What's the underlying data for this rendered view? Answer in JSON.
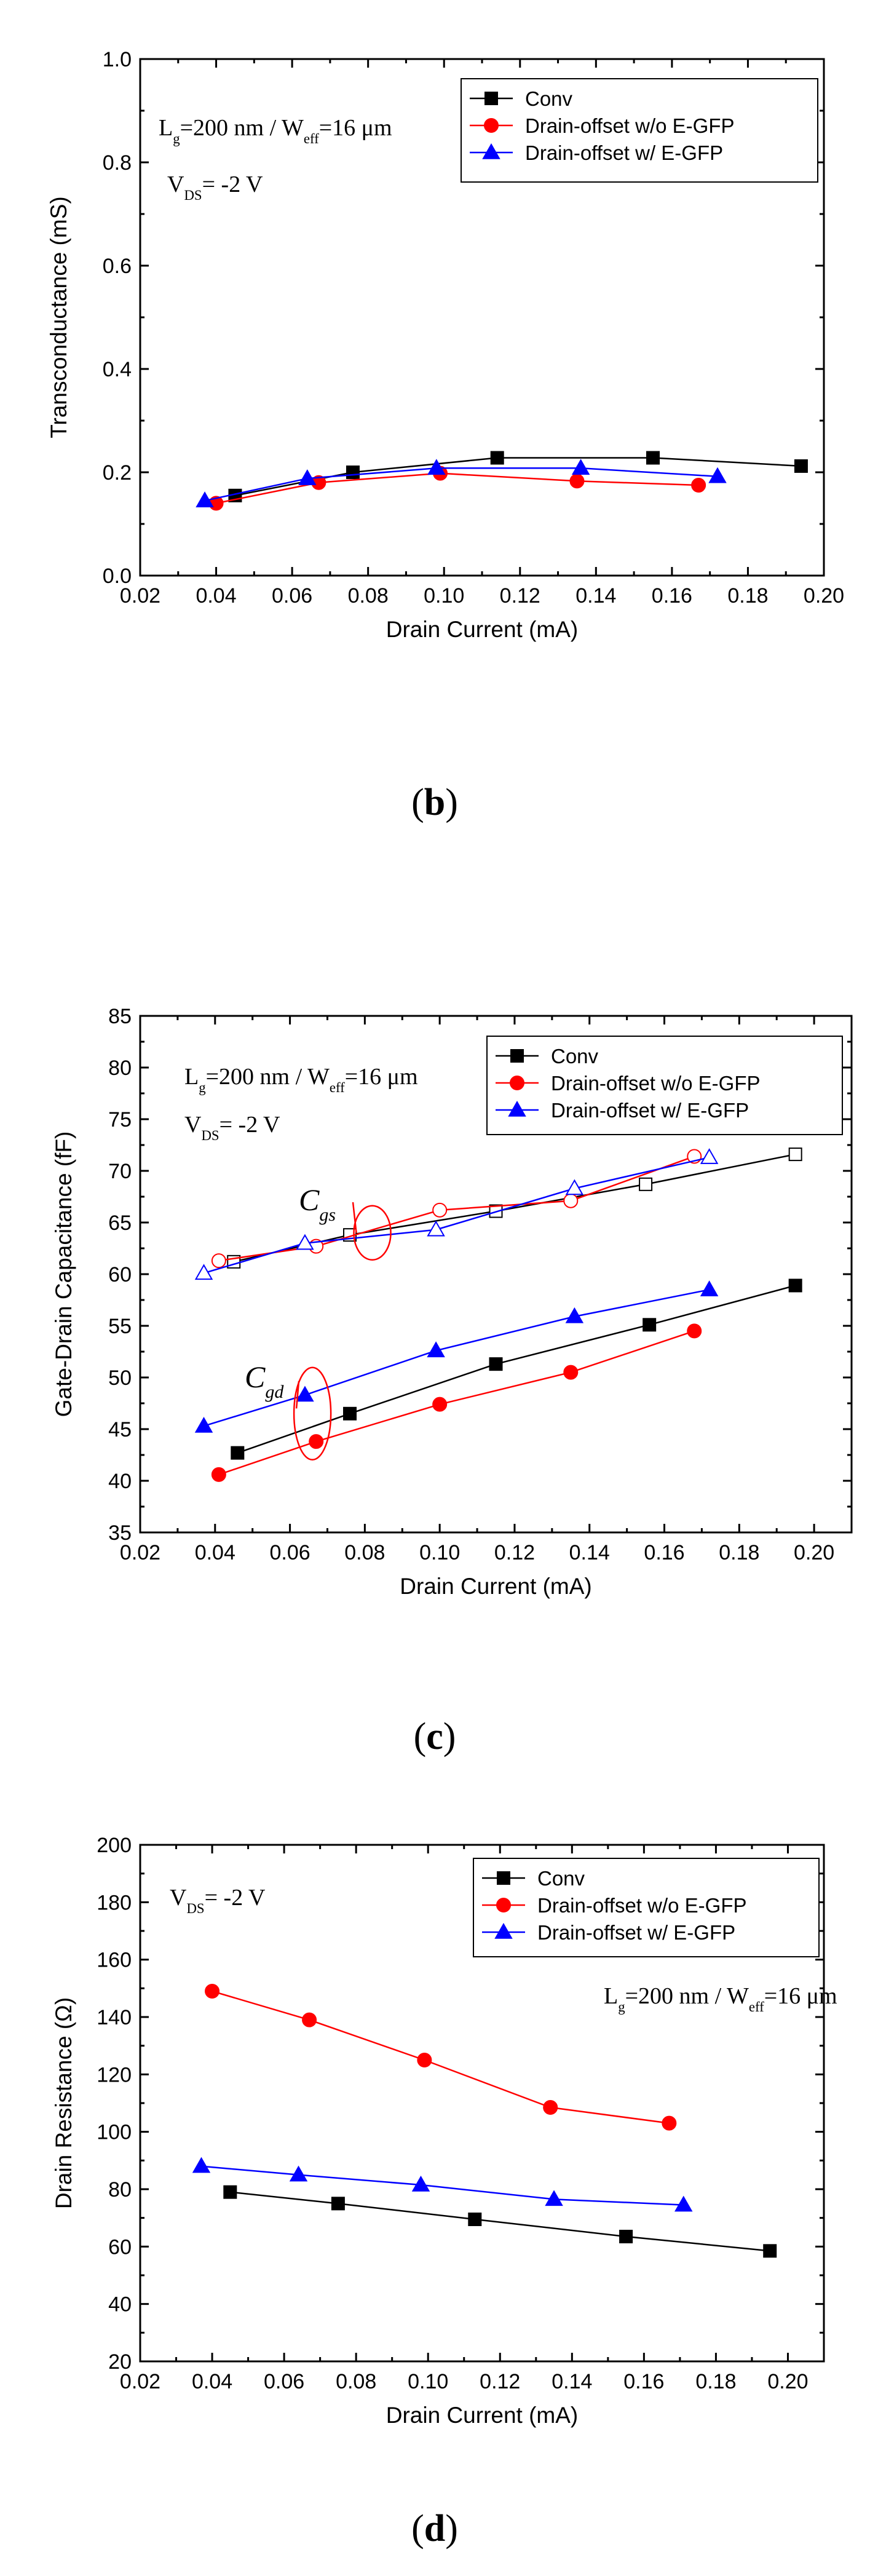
{
  "panels": [
    {
      "label": "b"
    },
    {
      "label": "c"
    },
    {
      "label": "d"
    }
  ],
  "series_colors": {
    "Conv": "#000000",
    "Drain-offset w/o E-GFP": "#ff0000",
    "Drain-offset w/ E-GFP": "#0000ff"
  },
  "chart_data": [
    {
      "type": "line",
      "panel": "b",
      "xlabel": "Drain Current (mA)",
      "ylabel": "Transconductance (mS)",
      "xlim": [
        0.02,
        0.2
      ],
      "ylim": [
        0.0,
        1.0
      ],
      "xticks": [
        "0.02",
        "0.04",
        "0.06",
        "0.08",
        "0.10",
        "0.12",
        "0.14",
        "0.16",
        "0.18",
        "0.20"
      ],
      "yticks": [
        "0.0",
        "0.2",
        "0.4",
        "0.6",
        "0.8",
        "1.0"
      ],
      "legend_position": "top-right",
      "annotations": {
        "lg": "L",
        "lg_sub": "g",
        "lg_rest": "=200 nm / W",
        "weff_sub": "eff",
        "weff_rest": "=16 μm",
        "vds": "V",
        "vds_sub": "DS",
        "vds_rest": "= -2 V"
      },
      "series": [
        {
          "name": "Conv",
          "marker": "square",
          "x": [
            0.045,
            0.076,
            0.114,
            0.155,
            0.194
          ],
          "y": [
            0.155,
            0.2,
            0.228,
            0.228,
            0.212
          ]
        },
        {
          "name": "Drain-offset w/o E-GFP",
          "marker": "circle",
          "x": [
            0.04,
            0.067,
            0.099,
            0.135,
            0.167
          ],
          "y": [
            0.14,
            0.18,
            0.198,
            0.183,
            0.175
          ]
        },
        {
          "name": "Drain-offset w/ E-GFP",
          "marker": "triangle",
          "x": [
            0.037,
            0.064,
            0.098,
            0.136,
            0.172
          ],
          "y": [
            0.145,
            0.188,
            0.208,
            0.208,
            0.192
          ]
        }
      ]
    },
    {
      "type": "line",
      "panel": "c",
      "xlabel": "Drain Current (mA)",
      "ylabel": "Gate-Drain Capacitance (fF)",
      "xlim": [
        0.02,
        0.21
      ],
      "ylim": [
        35,
        85
      ],
      "xticks": [
        "0.02",
        "0.04",
        "0.06",
        "0.08",
        "0.10",
        "0.12",
        "0.14",
        "0.16",
        "0.18",
        "0.20"
      ],
      "yticks": [
        "35",
        "40",
        "45",
        "50",
        "55",
        "60",
        "65",
        "70",
        "75",
        "80",
        "85"
      ],
      "legend_position": "top-right",
      "annotations": {
        "lg": "L",
        "lg_sub": "g",
        "lg_rest": "=200 nm / W",
        "weff_sub": "eff",
        "weff_rest": "=16 μm",
        "vds": "V",
        "vds_sub": "DS",
        "vds_rest": "= -2 V",
        "cgs": "C",
        "cgs_sub": "gs",
        "cgd": "C",
        "cgd_sub": "gd"
      },
      "series": [
        {
          "name": "Conv",
          "marker": "square",
          "x": [
            0.046,
            0.076,
            0.115,
            0.156,
            0.195
          ],
          "y": [
            42.7,
            46.5,
            51.3,
            55.1,
            58.9
          ]
        },
        {
          "name": "Drain-offset w/o E-GFP",
          "marker": "circle",
          "x": [
            0.041,
            0.067,
            0.1,
            0.135,
            0.168
          ],
          "y": [
            40.6,
            43.8,
            47.4,
            50.5,
            54.5
          ]
        },
        {
          "name": "Drain-offset w/ E-GFP",
          "marker": "triangle",
          "x": [
            0.037,
            0.064,
            0.099,
            0.136,
            0.172
          ],
          "y": [
            45.3,
            48.3,
            52.6,
            55.9,
            58.5
          ]
        }
      ],
      "series_cgs": [
        {
          "name": "Conv",
          "marker": "square-open",
          "x": [
            0.045,
            0.076,
            0.115,
            0.155,
            0.195
          ],
          "y": [
            61.2,
            63.8,
            66.1,
            68.7,
            71.6
          ]
        },
        {
          "name": "Drain-offset w/o E-GFP",
          "marker": "circle-open",
          "x": [
            0.041,
            0.067,
            0.1,
            0.135,
            0.168
          ],
          "y": [
            61.3,
            62.7,
            66.2,
            67.1,
            71.4
          ]
        },
        {
          "name": "Drain-offset w/ E-GFP",
          "marker": "triangle-open",
          "x": [
            0.037,
            0.064,
            0.099,
            0.136,
            0.172
          ],
          "y": [
            60.1,
            63.0,
            64.3,
            68.3,
            71.3
          ]
        }
      ]
    },
    {
      "type": "line",
      "panel": "d",
      "xlabel": "Drain Current (mA)",
      "ylabel": "Drain Resistance (Ω)",
      "xlim": [
        0.02,
        0.21
      ],
      "ylim": [
        20,
        200
      ],
      "xticks": [
        "0.02",
        "0.04",
        "0.06",
        "0.08",
        "0.10",
        "0.12",
        "0.14",
        "0.16",
        "0.18",
        "0.20"
      ],
      "yticks": [
        "20",
        "40",
        "60",
        "80",
        "100",
        "120",
        "140",
        "160",
        "180",
        "200"
      ],
      "legend_position": "top-right",
      "annotations": {
        "lg": "L",
        "lg_sub": "g",
        "lg_rest": "=200 nm / W",
        "weff_sub": "eff",
        "weff_rest": "=16 μm",
        "vds": "V",
        "vds_sub": "DS",
        "vds_rest": "= -2 V"
      },
      "series": [
        {
          "name": "Conv",
          "marker": "square",
          "x": [
            0.045,
            0.075,
            0.113,
            0.155,
            0.195
          ],
          "y": [
            79,
            75,
            69.5,
            63.5,
            58.5
          ]
        },
        {
          "name": "Drain-offset w/o E-GFP",
          "marker": "circle",
          "x": [
            0.04,
            0.067,
            0.099,
            0.134,
            0.167
          ],
          "y": [
            149,
            139,
            125,
            108.5,
            103
          ]
        },
        {
          "name": "Drain-offset w/ E-GFP",
          "marker": "triangle",
          "x": [
            0.037,
            0.064,
            0.098,
            0.135,
            0.171
          ],
          "y": [
            88,
            85,
            81.5,
            76.5,
            74.5
          ]
        }
      ]
    }
  ]
}
